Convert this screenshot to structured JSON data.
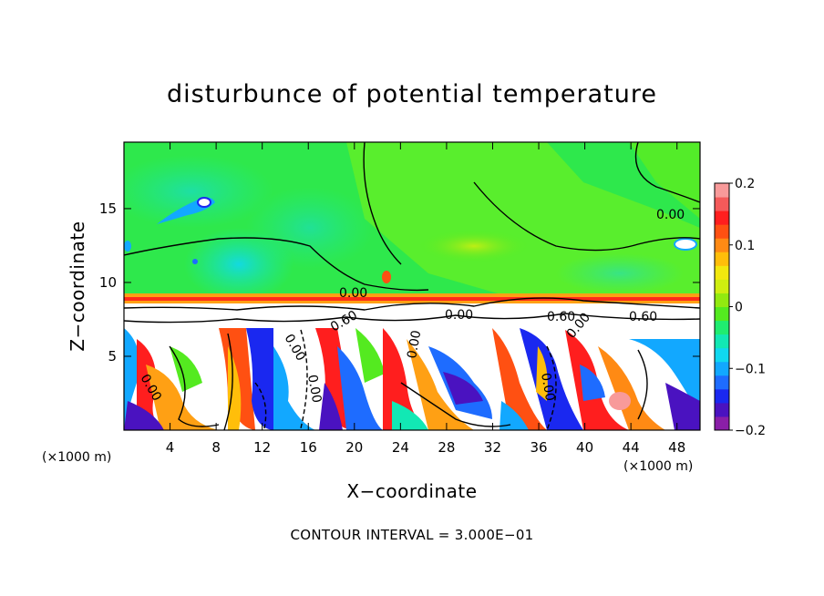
{
  "chart_data": {
    "type": "heatmap",
    "title": "disturbunce of potential temperature",
    "xlabel": "X−coordinate",
    "ylabel": "Z−coordinate",
    "x_unit_left": "(×1000 m)",
    "x_unit_right": "(×1000 m)",
    "xlim": [
      0,
      50
    ],
    "ylim": [
      0,
      19.5
    ],
    "x_ticks": [
      4,
      8,
      12,
      16,
      20,
      24,
      28,
      32,
      36,
      40,
      44,
      48
    ],
    "x_tick_labels": [
      "4",
      "8",
      "12",
      "16",
      "20",
      "24",
      "28",
      "32",
      "36",
      "40",
      "44",
      "48"
    ],
    "y_ticks": [
      5,
      10,
      15
    ],
    "y_tick_labels": [
      "5",
      "10",
      "15"
    ],
    "colorbar": {
      "range": [
        -0.2,
        0.2
      ],
      "tick_values": [
        0.2,
        0.1,
        0,
        -0.1,
        -0.2
      ],
      "tick_labels": [
        "0.2",
        "0.1",
        "0",
        "−0.1",
        "−0.2"
      ],
      "colors": [
        "#8a1ea8",
        "#4a12c0",
        "#1a28f0",
        "#1e6cff",
        "#12a8ff",
        "#10d8f0",
        "#12e8b4",
        "#20ec70",
        "#54ea20",
        "#92ea10",
        "#cfee10",
        "#f2e80e",
        "#ffbe0a",
        "#ff8a14",
        "#ff5012",
        "#ff1e1e",
        "#f45a5a",
        "#f89a9a"
      ]
    },
    "contour_labels": [
      "0.00",
      "0.00",
      "0.00",
      "0.60",
      "0.60",
      "0.60",
      "0.00",
      "0.00",
      "0.00",
      "0.00",
      "0.00",
      "0.00"
    ],
    "contour_interval_text": "CONTOUR INTERVAL = 3.000E−01"
  },
  "colors": {
    "upper_field": "#2ee84c",
    "upper_field_light": "#60ee28",
    "cyan_patch": "#12dcb4",
    "inversion_red": "#ff2a1a",
    "inversion_orange": "#ffa014"
  }
}
